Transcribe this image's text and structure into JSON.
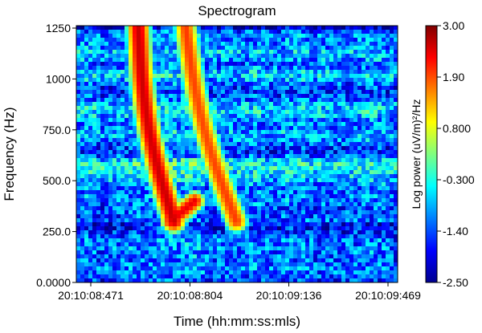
{
  "chart_data": {
    "type": "heatmap",
    "title": "Spectrogram",
    "xlabel": "Time (hh:mm:ss:mls)",
    "ylabel": "Frequency (Hz)",
    "colorbar_label": "Log power (uV/m)²/Hz",
    "x_tick_labels": [
      "20:10:08:471",
      "20:10:08:804",
      "20:10:09:136",
      "20:10:09:469"
    ],
    "y_tick_labels": [
      "0.0000",
      "250.0",
      "500.0",
      "750.0",
      "1000",
      "1250"
    ],
    "y_ticks": [
      0,
      250,
      500,
      750,
      1000,
      1250
    ],
    "ylim": [
      0,
      1250
    ],
    "colorbar_tick_labels": [
      "3.00",
      "1.90",
      "0.800",
      "-0.300",
      "-1.40",
      "-2.50"
    ],
    "colorbar_range": [
      -2.5,
      3.0
    ],
    "colormap": "jet",
    "features": [
      {
        "type": "falling tone",
        "start_time": "20:10:08:631",
        "start_freq_hz": 1250,
        "end_time": "20:10:08:750",
        "end_freq_hz": 300,
        "peak_log_power": 2.9
      },
      {
        "type": "falling tone",
        "start_time": "20:10:08:790",
        "start_freq_hz": 1250,
        "end_time": "20:10:08:960",
        "end_freq_hz": 300,
        "peak_log_power": 2.3
      },
      {
        "type": "hook",
        "start_time": "20:10:08:740",
        "start_freq_hz": 300,
        "end_time": "20:10:08:820",
        "end_freq_hz": 400,
        "peak_log_power": 2.7
      }
    ]
  }
}
